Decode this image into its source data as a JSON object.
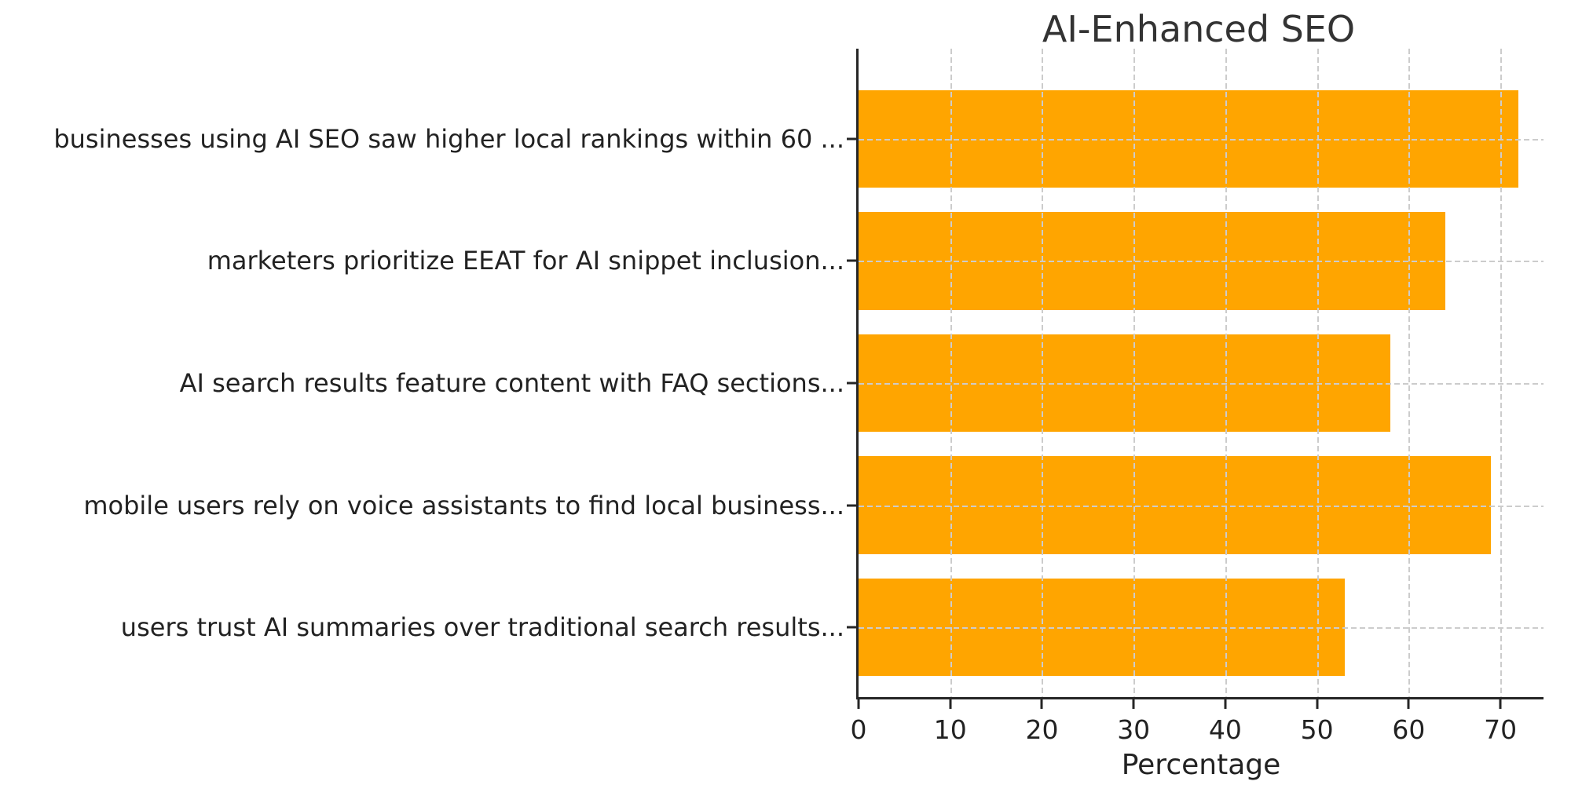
{
  "figure": {
    "background": "#ffffff"
  },
  "chart_data": {
    "type": "bar",
    "orientation": "horizontal",
    "title": "AI-Enhanced SEO",
    "categories": [
      "businesses using AI SEO saw higher local rankings within 60 ...",
      "marketers prioritize EEAT for AI snippet inclusion...",
      "AI search results feature content with FAQ sections...",
      "mobile users rely on voice assistants to find local business...",
      "users trust AI summaries over traditional search results..."
    ],
    "values": [
      72,
      64,
      58,
      69,
      53
    ],
    "xlabel": "Percentage",
    "xticks": [
      0,
      10,
      20,
      30,
      40,
      50,
      60,
      70
    ],
    "xlim": [
      0,
      74.7
    ],
    "bar_color": "#FFA500",
    "grid": {
      "style": "dashed",
      "color": "#cccccc",
      "axes": "both",
      "position": "above-bars"
    },
    "legend": "none",
    "title_color": "#333333",
    "text_color": "#222222"
  }
}
